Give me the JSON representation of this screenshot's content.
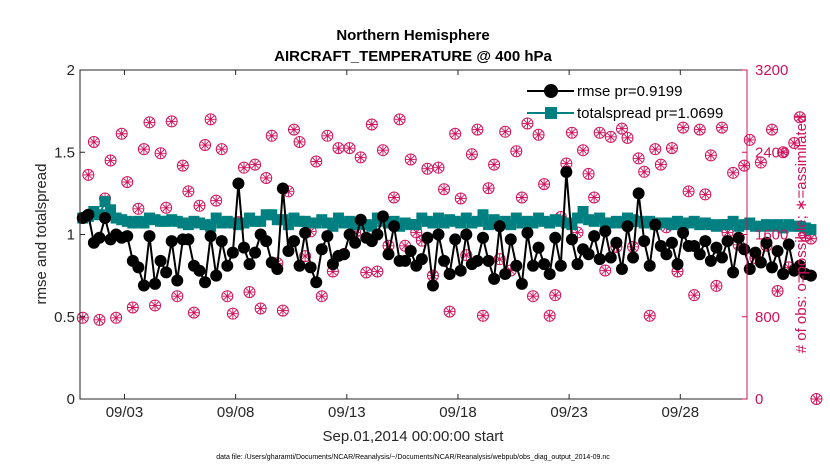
{
  "chart_data": {
    "type": "line",
    "title": "Northern Hemisphere",
    "subtitle": "AIRCRAFT_TEMPERATURE @ 400 hPa",
    "xlabel": "Sep.01,2014 00:00:00 start",
    "ylabel_left": "rmse and totalspread",
    "ylabel_right": "# of obs: o=possible; ∗=assimilated",
    "footnote": "data file: /Users/gharamti/Documents/NCAR/Reanalysis/~/Documents/NCAR/Reanalysis/webpub/obs_diag_output_2014-09.nc",
    "xlim": [
      1.0,
      31.0
    ],
    "ylim_left": [
      0,
      2
    ],
    "ylim_right": [
      0,
      3200
    ],
    "x_ticks": [
      3,
      8,
      13,
      18,
      23,
      28
    ],
    "x_tick_labels": [
      "09/03",
      "09/08",
      "09/13",
      "09/18",
      "09/23",
      "09/28"
    ],
    "y_left_ticks": [
      0,
      0.5,
      1,
      1.5,
      2
    ],
    "y_left_tick_labels": [
      "0",
      "0.5",
      "1",
      "1.5",
      "2"
    ],
    "y_right_ticks": [
      0,
      800,
      1600,
      2400,
      3200
    ],
    "y_right_tick_labels": [
      "0",
      "800",
      "1600",
      "2400",
      "3200"
    ],
    "x_step_days": 0.25,
    "x_start": 1.125,
    "legend_position": "top-right",
    "colors": {
      "rmse": "#000000",
      "totalspread": "#008080",
      "obs": "#d0115b",
      "axis_left": "#000000",
      "axis_right": "#d0115b"
    },
    "series": [
      {
        "name": "rmse",
        "label": "rmse pr=0.9199",
        "axis": "left",
        "values": [
          1.1,
          1.12,
          0.95,
          0.98,
          1.1,
          0.97,
          1.0,
          0.98,
          0.99,
          0.84,
          0.8,
          0.69,
          0.99,
          0.7,
          0.84,
          0.77,
          0.96,
          0.72,
          0.97,
          0.97,
          0.81,
          0.78,
          0.71,
          0.99,
          0.75,
          0.96,
          0.81,
          0.89,
          1.31,
          0.92,
          0.82,
          0.89,
          1.0,
          0.96,
          0.83,
          0.79,
          1.28,
          0.9,
          0.96,
          0.81,
          1.01,
          0.8,
          0.71,
          0.91,
          0.99,
          0.82,
          0.87,
          0.88,
          1.0,
          0.95,
          1.09,
          0.98,
          0.96,
          1.0,
          1.11,
          0.88,
          1.05,
          0.84,
          0.84,
          0.9,
          0.81,
          0.85,
          0.98,
          0.69,
          1.0,
          0.84,
          0.76,
          0.97,
          0.78,
          1.0,
          0.82,
          0.84,
          0.98,
          0.84,
          0.73,
          1.05,
          0.76,
          0.97,
          0.81,
          0.7,
          1.01,
          0.81,
          0.92,
          0.82,
          0.76,
          0.98,
          0.81,
          1.38,
          0.97,
          0.82,
          0.91,
          0.88,
          0.99,
          0.85,
          1.02,
          0.86,
          0.95,
          0.79,
          1.05,
          0.86,
          1.25,
          0.96,
          0.81,
          1.06,
          0.93,
          0.88,
          0.95,
          0.82,
          1.01,
          0.93,
          0.93,
          0.88,
          0.96,
          0.84,
          0.92,
          0.86,
          0.96,
          0.77,
          0.98,
          0.91,
          0.79,
          0.89,
          0.83,
          0.95,
          0.8,
          0.9,
          0.76,
          0.94,
          0.78,
          0.81,
          0.76,
          0.75
        ]
      },
      {
        "name": "totalspread",
        "label": "totalspread pr=1.0699",
        "axis": "left",
        "values": [
          1.1,
          1.11,
          1.14,
          1.12,
          1.2,
          1.15,
          1.1,
          1.09,
          1.08,
          1.07,
          1.08,
          1.07,
          1.1,
          1.09,
          1.08,
          1.08,
          1.09,
          1.08,
          1.07,
          1.06,
          1.08,
          1.07,
          1.06,
          1.05,
          1.1,
          1.07,
          1.08,
          1.07,
          1.06,
          1.07,
          1.1,
          1.08,
          1.08,
          1.12,
          1.12,
          1.09,
          1.09,
          1.06,
          1.1,
          1.08,
          1.08,
          1.07,
          1.07,
          1.09,
          1.07,
          1.05,
          1.1,
          1.07,
          1.08,
          1.06,
          1.07,
          1.06,
          1.05,
          1.1,
          1.08,
          1.07,
          1.08,
          1.05,
          1.07,
          1.06,
          1.06,
          1.1,
          1.08,
          1.07,
          1.1,
          1.07,
          1.09,
          1.08,
          1.07,
          1.1,
          1.07,
          1.08,
          1.12,
          1.06,
          1.09,
          1.07,
          1.08,
          1.06,
          1.1,
          1.07,
          1.08,
          1.07,
          1.1,
          1.08,
          1.07,
          1.09,
          1.08,
          1.07,
          1.06,
          1.1,
          1.14,
          1.09,
          1.08,
          1.1,
          1.07,
          1.07,
          1.08,
          1.07,
          1.1,
          1.09,
          1.08,
          1.07,
          1.08,
          1.06,
          1.07,
          1.07,
          1.06,
          1.08,
          1.06,
          1.07,
          1.08,
          1.06,
          1.07,
          1.06,
          1.05,
          1.06,
          1.06,
          1.08,
          1.05,
          1.06,
          1.07,
          1.05,
          1.05,
          1.06,
          1.05,
          1.06,
          1.04,
          1.06,
          1.05,
          1.05,
          1.04,
          1.03
        ]
      }
    ],
    "obs_possible": [
      790,
      2180,
      2500,
      770,
      1950,
      2320,
      790,
      2580,
      2110,
      890,
      1850,
      2430,
      2690,
      910,
      2390,
      1860,
      2700,
      1000,
      2270,
      2020,
      840,
      1880,
      2470,
      2720,
      1930,
      2430,
      1000,
      830,
      1720,
      2250,
      1040,
      2280,
      880,
      2150,
      2560,
      1320,
      860,
      2020,
      2620,
      2500,
      1390,
      1630,
      2310,
      1000,
      2560,
      1240,
      2440,
      1410,
      2440,
      1620,
      2350,
      1230,
      2670,
      1240,
      2420,
      1490,
      1960,
      2720,
      1490,
      2330,
      1620,
      1540,
      2240,
      1200,
      2250,
      2040,
      850,
      2580,
      1950,
      1400,
      2380,
      2620,
      810,
      2050,
      2280,
      1360,
      2600,
      1250,
      2410,
      1960,
      2680,
      1000,
      2570,
      2090,
      810,
      1010,
      1770,
      2290,
      2590,
      1620,
      2420,
      2190,
      1960,
      2590,
      1250,
      2550,
      1480,
      2630,
      2540,
      1480,
      2340,
      2210,
      810,
      2430,
      2280,
      1670,
      2440,
      1240,
      2640,
      2020,
      1010,
      2620,
      1990,
      2370,
      1100,
      2640,
      1620,
      2200,
      1500,
      2270,
      2520,
      1370,
      2300,
      1490,
      2620,
      1050,
      2400,
      1280,
      2490,
      2740,
      1590,
      1560,
      0
    ]
  }
}
